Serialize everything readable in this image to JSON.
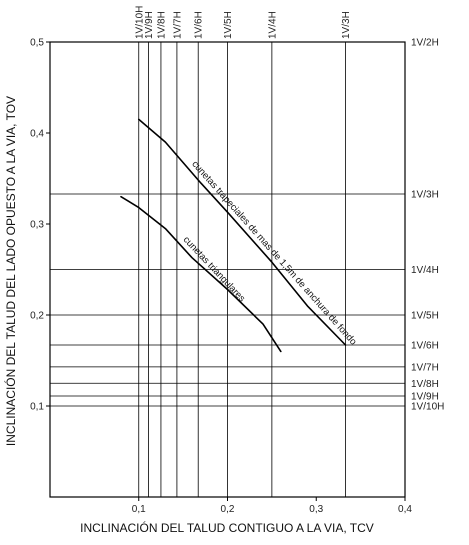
{
  "chart_data": {
    "type": "line",
    "xlabel": "INCLINACIÓN DEL TALUD CONTIGUO A LA VIA, TCV",
    "ylabel": "INCLINACIÓN DEL TALUD DEL LADO OPUESTO A LA VIA, TOV",
    "xlim": [
      0,
      0.4
    ],
    "ylim": [
      0,
      0.5
    ],
    "x_ticks": [
      {
        "value": 0.1,
        "label": "0,1"
      },
      {
        "value": 0.2,
        "label": "0,2"
      },
      {
        "value": 0.3,
        "label": "0,3"
      },
      {
        "value": 0.4,
        "label": "0,4"
      }
    ],
    "y_ticks": [
      {
        "value": 0.1,
        "label": "0,1"
      },
      {
        "value": 0.2,
        "label": "0,2"
      },
      {
        "value": 0.3,
        "label": "0,3"
      },
      {
        "value": 0.4,
        "label": "0,4"
      },
      {
        "value": 0.5,
        "label": "0,5"
      }
    ],
    "slope_lines_x": [
      {
        "value": 0.1,
        "label": "1V/10H"
      },
      {
        "value": 0.111,
        "label": "1V/9H"
      },
      {
        "value": 0.125,
        "label": "1V/8H"
      },
      {
        "value": 0.143,
        "label": "1V/7H"
      },
      {
        "value": 0.167,
        "label": "1V/6H"
      },
      {
        "value": 0.2,
        "label": "1V/5H"
      },
      {
        "value": 0.25,
        "label": "1V/4H"
      },
      {
        "value": 0.333,
        "label": "1V/3H"
      }
    ],
    "slope_lines_y": [
      {
        "value": 0.5,
        "label": "1V/2H"
      },
      {
        "value": 0.333,
        "label": "1V/3H"
      },
      {
        "value": 0.25,
        "label": "1V/4H"
      },
      {
        "value": 0.2,
        "label": "1V/5H"
      },
      {
        "value": 0.167,
        "label": "1V/6H"
      },
      {
        "value": 0.143,
        "label": "1V/7H"
      },
      {
        "value": 0.125,
        "label": "1V/8H"
      },
      {
        "value": 0.111,
        "label": "1V/9H"
      },
      {
        "value": 0.1,
        "label": "1V/10H"
      }
    ],
    "series": [
      {
        "name": "cunetas trapeciales de mas de 1,5m de anchura de fondo",
        "points": [
          [
            0.1,
            0.415
          ],
          [
            0.13,
            0.39
          ],
          [
            0.17,
            0.345
          ],
          [
            0.2,
            0.313
          ],
          [
            0.25,
            0.258
          ],
          [
            0.29,
            0.21
          ],
          [
            0.333,
            0.167
          ]
        ]
      },
      {
        "name": "cunetas triangulares",
        "points": [
          [
            0.08,
            0.33
          ],
          [
            0.1,
            0.318
          ],
          [
            0.13,
            0.295
          ],
          [
            0.16,
            0.263
          ],
          [
            0.2,
            0.228
          ],
          [
            0.24,
            0.19
          ],
          [
            0.26,
            0.16
          ]
        ]
      }
    ],
    "grid": true,
    "legend": "none"
  }
}
